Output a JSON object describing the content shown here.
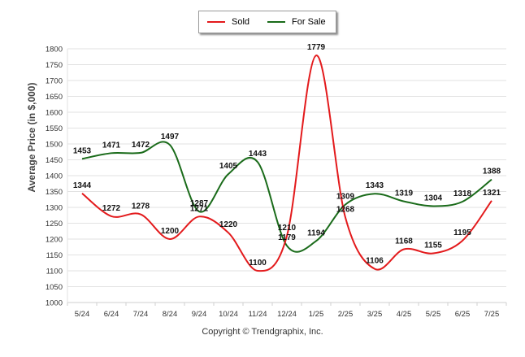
{
  "chart_data": {
    "type": "line",
    "categories": [
      "5/24",
      "6/24",
      "7/24",
      "8/24",
      "9/24",
      "10/24",
      "11/24",
      "12/24",
      "1/25",
      "2/25",
      "3/25",
      "4/25",
      "5/25",
      "6/25",
      "7/25"
    ],
    "series": [
      {
        "name": "Sold",
        "color": "#e31a1c",
        "values": [
          1344,
          1272,
          1278,
          1200,
          1271,
          1220,
          1100,
          1210,
          1779,
          1268,
          1106,
          1168,
          1155,
          1195,
          1321
        ]
      },
      {
        "name": "For Sale",
        "color": "#1a6b1a",
        "values": [
          1453,
          1471,
          1472,
          1497,
          1287,
          1405,
          1443,
          1179,
          1194,
          1309,
          1343,
          1319,
          1304,
          1318,
          1388
        ]
      }
    ],
    "ylabel": "Average Price (in $,000)",
    "xlabel": "",
    "ylim": [
      1000,
      1800
    ],
    "yticks": [
      1000,
      1050,
      1100,
      1150,
      1200,
      1250,
      1300,
      1350,
      1400,
      1450,
      1500,
      1550,
      1600,
      1650,
      1700,
      1750,
      1800
    ],
    "grid": true,
    "legend_position": "top-center"
  },
  "footer": {
    "copyright": "Copyright © Trendgraphix, Inc."
  }
}
